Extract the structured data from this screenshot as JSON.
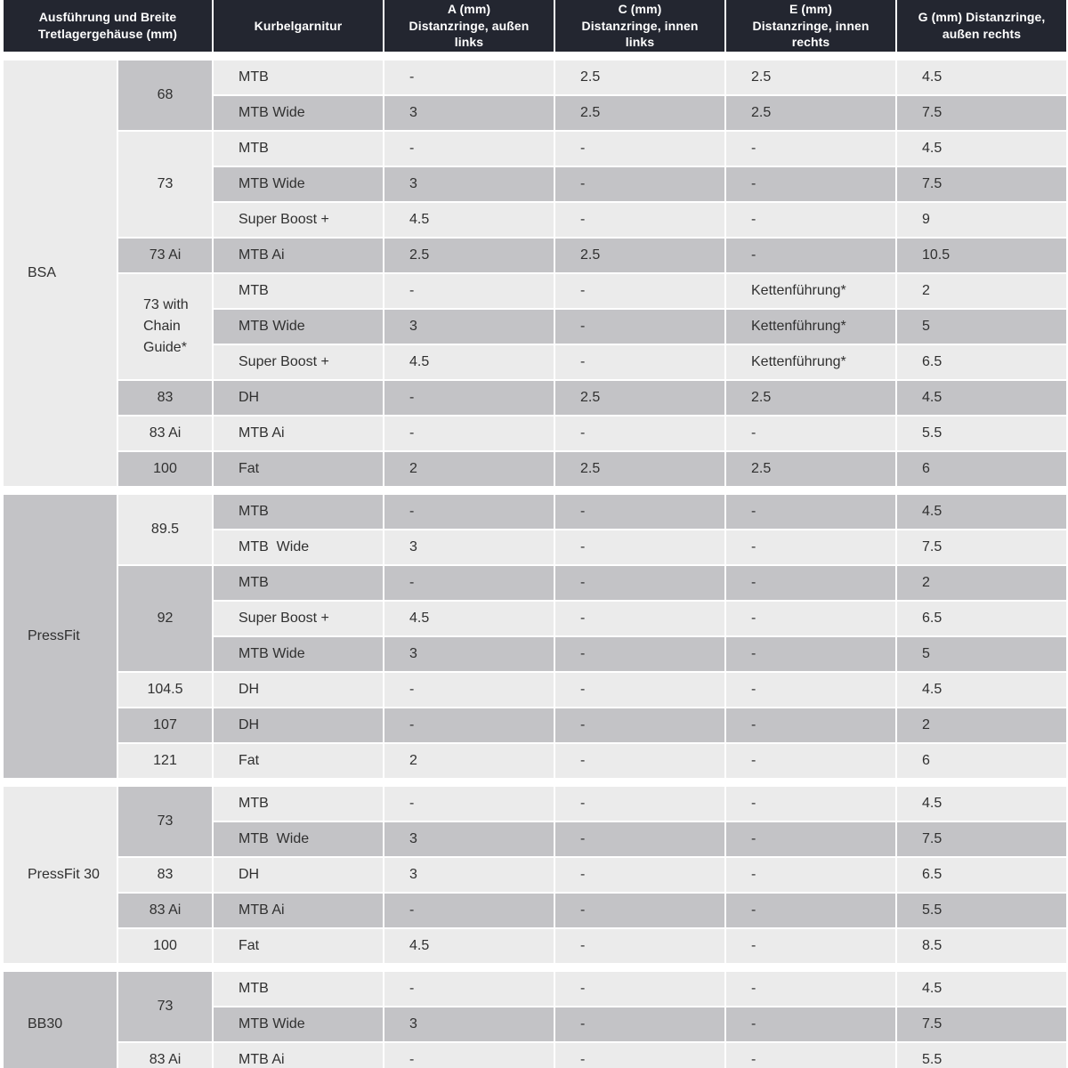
{
  "colors": {
    "header_bg": "#232630",
    "header_text": "#ffffff",
    "row_light": "#ebebeb",
    "row_dark": "#c3c3c6",
    "body_text": "#303030"
  },
  "table": {
    "headers": [
      {
        "key": "spec",
        "label": "Ausführung und Breite\nTretlagergehäuse (mm)"
      },
      {
        "key": "crankset",
        "label": "Kurbelgarnitur"
      },
      {
        "key": "a",
        "label": "A (mm)\nDistanzringe, außen\nlinks"
      },
      {
        "key": "c",
        "label": "C (mm)\nDistanzringe, innen\nlinks"
      },
      {
        "key": "e",
        "label": "E (mm)\nDistanzringe, innen\nrechts"
      },
      {
        "key": "g",
        "label": "G (mm) Distanzringe,\naußen rechts"
      }
    ],
    "sections": [
      {
        "label": "BSA",
        "shade": "light",
        "groups": [
          {
            "label": "68",
            "shade": "dark",
            "rows": [
              {
                "crankset": "MTB",
                "shade": "light",
                "a": "-",
                "c": "2.5",
                "e": "2.5",
                "g": "4.5"
              },
              {
                "crankset": "MTB Wide",
                "shade": "dark",
                "a": "3",
                "c": "2.5",
                "e": "2.5",
                "g": "7.5"
              }
            ]
          },
          {
            "label": "73",
            "shade": "light",
            "rows": [
              {
                "crankset": "MTB",
                "shade": "light",
                "a": "-",
                "c": "-",
                "e": "-",
                "g": "4.5"
              },
              {
                "crankset": "MTB Wide",
                "shade": "dark",
                "a": "3",
                "c": "-",
                "e": "-",
                "g": "7.5"
              },
              {
                "crankset": "Super Boost +",
                "shade": "light",
                "a": "4.5",
                "c": "-",
                "e": "-",
                "g": "9"
              }
            ]
          },
          {
            "label": "73 Ai",
            "shade": "dark",
            "rows": [
              {
                "crankset": "MTB Ai",
                "shade": "dark",
                "a": "2.5",
                "c": "2.5",
                "e": "-",
                "g": "10.5"
              }
            ]
          },
          {
            "label": "73 with Chain Guide*",
            "shade": "light",
            "rows": [
              {
                "crankset": "MTB",
                "shade": "light",
                "a": "-",
                "c": "-",
                "e": "Kettenführung*",
                "g": "2"
              },
              {
                "crankset": "MTB Wide",
                "shade": "dark",
                "a": "3",
                "c": "-",
                "e": "Kettenführung*",
                "g": "5"
              },
              {
                "crankset": "Super Boost +",
                "shade": "light",
                "a": "4.5",
                "c": "-",
                "e": "Kettenführung*",
                "g": "6.5"
              }
            ]
          },
          {
            "label": "83",
            "shade": "dark",
            "rows": [
              {
                "crankset": "DH",
                "shade": "dark",
                "a": "-",
                "c": "2.5",
                "e": "2.5",
                "g": "4.5"
              }
            ]
          },
          {
            "label": "83 Ai",
            "shade": "light",
            "rows": [
              {
                "crankset": "MTB Ai",
                "shade": "light",
                "a": "-",
                "c": "-",
                "e": "-",
                "g": "5.5"
              }
            ]
          },
          {
            "label": "100",
            "shade": "dark",
            "rows": [
              {
                "crankset": "Fat",
                "shade": "dark",
                "a": "2",
                "c": "2.5",
                "e": "2.5",
                "g": "6"
              }
            ]
          }
        ]
      },
      {
        "label": "PressFit",
        "shade": "dark",
        "groups": [
          {
            "label": "89.5",
            "shade": "light",
            "rows": [
              {
                "crankset": "MTB",
                "shade": "dark",
                "a": "-",
                "c": "-",
                "e": "-",
                "g": "4.5"
              },
              {
                "crankset": "MTB  Wide",
                "shade": "light",
                "a": "3",
                "c": "-",
                "e": "-",
                "g": "7.5"
              }
            ]
          },
          {
            "label": "92",
            "shade": "dark",
            "rows": [
              {
                "crankset": "MTB",
                "shade": "dark",
                "a": "-",
                "c": "-",
                "e": "-",
                "g": "2"
              },
              {
                "crankset": "Super Boost +",
                "shade": "light",
                "a": "4.5",
                "c": "-",
                "e": "-",
                "g": "6.5"
              },
              {
                "crankset": "MTB Wide",
                "shade": "dark",
                "a": "3",
                "c": "-",
                "e": "-",
                "g": "5"
              }
            ]
          },
          {
            "label": "104.5",
            "shade": "light",
            "rows": [
              {
                "crankset": "DH",
                "shade": "light",
                "a": "-",
                "c": "-",
                "e": "-",
                "g": "4.5"
              }
            ]
          },
          {
            "label": "107",
            "shade": "dark",
            "rows": [
              {
                "crankset": "DH",
                "shade": "dark",
                "a": "-",
                "c": "-",
                "e": "-",
                "g": "2"
              }
            ]
          },
          {
            "label": "121",
            "shade": "light",
            "rows": [
              {
                "crankset": "Fat",
                "shade": "light",
                "a": "2",
                "c": "-",
                "e": "-",
                "g": "6"
              }
            ]
          }
        ]
      },
      {
        "label": "PressFit 30",
        "shade": "light",
        "groups": [
          {
            "label": "73",
            "shade": "dark",
            "rows": [
              {
                "crankset": "MTB",
                "shade": "light",
                "a": "-",
                "c": "-",
                "e": "-",
                "g": "4.5"
              },
              {
                "crankset": "MTB  Wide",
                "shade": "dark",
                "a": "3",
                "c": "-",
                "e": "-",
                "g": "7.5"
              }
            ]
          },
          {
            "label": "83",
            "shade": "light",
            "rows": [
              {
                "crankset": "DH",
                "shade": "light",
                "a": "3",
                "c": "-",
                "e": "-",
                "g": "6.5"
              }
            ]
          },
          {
            "label": "83 Ai",
            "shade": "dark",
            "rows": [
              {
                "crankset": "MTB Ai",
                "shade": "dark",
                "a": "-",
                "c": "-",
                "e": "-",
                "g": "5.5"
              }
            ]
          },
          {
            "label": "100",
            "shade": "light",
            "rows": [
              {
                "crankset": "Fat",
                "shade": "light",
                "a": "4.5",
                "c": "-",
                "e": "-",
                "g": "8.5"
              }
            ]
          }
        ]
      },
      {
        "label": "BB30",
        "shade": "dark",
        "groups": [
          {
            "label": "73",
            "shade": "dark",
            "rows": [
              {
                "crankset": "MTB",
                "shade": "light",
                "a": "-",
                "c": "-",
                "e": "-",
                "g": "4.5"
              },
              {
                "crankset": "MTB Wide",
                "shade": "dark",
                "a": "3",
                "c": "-",
                "e": "-",
                "g": "7.5"
              }
            ]
          },
          {
            "label": "83 Ai",
            "shade": "light",
            "rows": [
              {
                "crankset": "MTB Ai",
                "shade": "light",
                "a": "-",
                "c": "-",
                "e": "-",
                "g": "5.5"
              }
            ]
          }
        ]
      }
    ]
  },
  "chart_data": {
    "type": "table",
    "title": "",
    "columns": [
      "Ausführung Tretlagergehäuse",
      "Breite Tretlagergehäuse (mm)",
      "Kurbelgarnitur",
      "A (mm) Distanzringe, außen links",
      "C (mm) Distanzringe, innen links",
      "E (mm) Distanzringe, innen rechts",
      "G (mm) Distanzringe, außen rechts"
    ],
    "rows": [
      [
        "BSA",
        "68",
        "MTB",
        "-",
        "2.5",
        "2.5",
        "4.5"
      ],
      [
        "BSA",
        "68",
        "MTB Wide",
        "3",
        "2.5",
        "2.5",
        "7.5"
      ],
      [
        "BSA",
        "73",
        "MTB",
        "-",
        "-",
        "-",
        "4.5"
      ],
      [
        "BSA",
        "73",
        "MTB Wide",
        "3",
        "-",
        "-",
        "7.5"
      ],
      [
        "BSA",
        "73",
        "Super Boost +",
        "4.5",
        "-",
        "-",
        "9"
      ],
      [
        "BSA",
        "73 Ai",
        "MTB Ai",
        "2.5",
        "2.5",
        "-",
        "10.5"
      ],
      [
        "BSA",
        "73 with Chain Guide*",
        "MTB",
        "-",
        "-",
        "Kettenführung*",
        "2"
      ],
      [
        "BSA",
        "73 with Chain Guide*",
        "MTB Wide",
        "3",
        "-",
        "Kettenführung*",
        "5"
      ],
      [
        "BSA",
        "73 with Chain Guide*",
        "Super Boost +",
        "4.5",
        "-",
        "Kettenführung*",
        "6.5"
      ],
      [
        "BSA",
        "83",
        "DH",
        "-",
        "2.5",
        "2.5",
        "4.5"
      ],
      [
        "BSA",
        "83 Ai",
        "MTB Ai",
        "-",
        "-",
        "-",
        "5.5"
      ],
      [
        "BSA",
        "100",
        "Fat",
        "2",
        "2.5",
        "2.5",
        "6"
      ],
      [
        "PressFit",
        "89.5",
        "MTB",
        "-",
        "-",
        "-",
        "4.5"
      ],
      [
        "PressFit",
        "89.5",
        "MTB Wide",
        "3",
        "-",
        "-",
        "7.5"
      ],
      [
        "PressFit",
        "92",
        "MTB",
        "-",
        "-",
        "-",
        "2"
      ],
      [
        "PressFit",
        "92",
        "Super Boost +",
        "4.5",
        "-",
        "-",
        "6.5"
      ],
      [
        "PressFit",
        "92",
        "MTB Wide",
        "3",
        "-",
        "-",
        "5"
      ],
      [
        "PressFit",
        "104.5",
        "DH",
        "-",
        "-",
        "-",
        "4.5"
      ],
      [
        "PressFit",
        "107",
        "DH",
        "-",
        "-",
        "-",
        "2"
      ],
      [
        "PressFit",
        "121",
        "Fat",
        "2",
        "-",
        "-",
        "6"
      ],
      [
        "PressFit 30",
        "73",
        "MTB",
        "-",
        "-",
        "-",
        "4.5"
      ],
      [
        "PressFit 30",
        "73",
        "MTB Wide",
        "3",
        "-",
        "-",
        "7.5"
      ],
      [
        "PressFit 30",
        "83",
        "DH",
        "3",
        "-",
        "-",
        "6.5"
      ],
      [
        "PressFit 30",
        "83 Ai",
        "MTB Ai",
        "-",
        "-",
        "-",
        "5.5"
      ],
      [
        "PressFit 30",
        "100",
        "Fat",
        "4.5",
        "-",
        "-",
        "8.5"
      ],
      [
        "BB30",
        "73",
        "MTB",
        "-",
        "-",
        "-",
        "4.5"
      ],
      [
        "BB30",
        "73",
        "MTB Wide",
        "3",
        "-",
        "-",
        "7.5"
      ],
      [
        "BB30",
        "83 Ai",
        "MTB Ai",
        "-",
        "-",
        "-",
        "5.5"
      ]
    ]
  }
}
